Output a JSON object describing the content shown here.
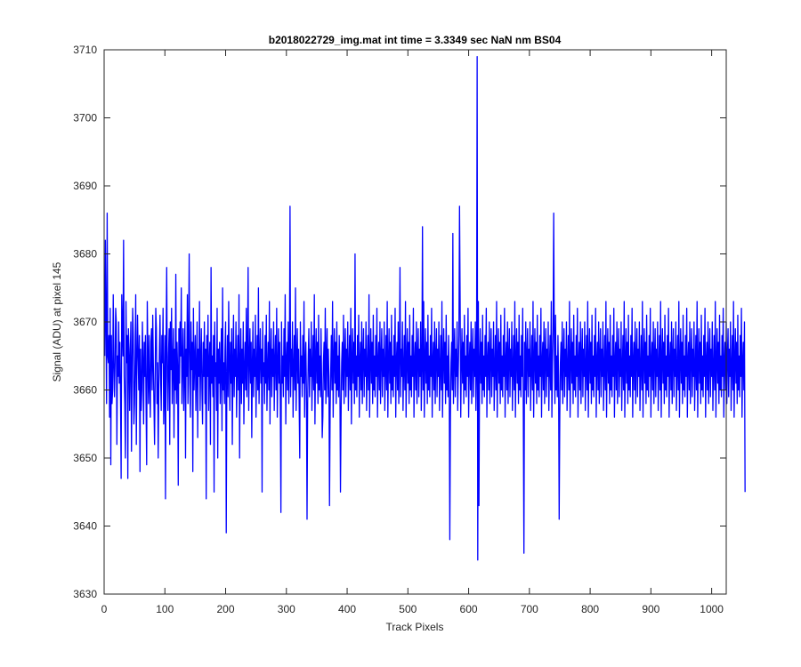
{
  "chart_data": {
    "type": "line",
    "title": "b2018022729_img.mat int time = 3.3349 sec  NaN nm BS04",
    "xlabel": "Track Pixels",
    "ylabel": "Signal (ADU) at pixel 145",
    "xlim": [
      0,
      1024
    ],
    "ylim": [
      3630,
      3710
    ],
    "xticks": [
      0,
      100,
      200,
      300,
      400,
      500,
      600,
      700,
      800,
      900,
      1000
    ],
    "yticks": [
      3630,
      3640,
      3650,
      3660,
      3670,
      3680,
      3690,
      3700,
      3710
    ],
    "grid": false,
    "legend": "none",
    "series_color": "#0000ff",
    "series": [
      {
        "x_start": 1,
        "x_step": 1,
        "y": [
          3665,
          3682,
          3670,
          3658,
          3686,
          3665,
          3664,
          3668,
          3656,
          3672,
          3649,
          3668,
          3658,
          3660,
          3674,
          3664,
          3659,
          3664,
          3672,
          3670,
          3652,
          3665,
          3662,
          3670,
          3661,
          3667,
          3659,
          3647,
          3674,
          3669,
          3665,
          3682,
          3662,
          3658,
          3650,
          3673,
          3664,
          3668,
          3647,
          3669,
          3666,
          3657,
          3665,
          3670,
          3651,
          3663,
          3672,
          3668,
          3655,
          3658,
          3665,
          3674,
          3652,
          3664,
          3671,
          3665,
          3660,
          3668,
          3648,
          3666,
          3657,
          3660,
          3670,
          3664,
          3655,
          3667,
          3662,
          3668,
          3658,
          3649,
          3673,
          3665,
          3658,
          3668,
          3661,
          3656,
          3667,
          3669,
          3660,
          3671,
          3664,
          3658,
          3652,
          3662,
          3672,
          3669,
          3658,
          3664,
          3650,
          3660,
          3666,
          3671,
          3662,
          3657,
          3668,
          3664,
          3672,
          3655,
          3660,
          3668,
          3644,
          3667,
          3678,
          3662,
          3657,
          3665,
          3669,
          3652,
          3670,
          3663,
          3672,
          3658,
          3664,
          3669,
          3653,
          3666,
          3660,
          3677,
          3658,
          3667,
          3663,
          3646,
          3669,
          3661,
          3670,
          3665,
          3675,
          3658,
          3664,
          3669,
          3657,
          3663,
          3670,
          3650,
          3666,
          3662,
          3674,
          3658,
          3667,
          3680,
          3661,
          3656,
          3670,
          3663,
          3667,
          3648,
          3672,
          3660,
          3664,
          3668,
          3657,
          3663,
          3670,
          3653,
          3666,
          3662,
          3673,
          3657,
          3664,
          3669,
          3660,
          3655,
          3667,
          3662,
          3670,
          3658,
          3666,
          3644,
          3668,
          3662,
          3671,
          3657,
          3664,
          3667,
          3652,
          3678,
          3661,
          3665,
          3659,
          3668,
          3645,
          3670,
          3662,
          3664,
          3657,
          3672,
          3650,
          3666,
          3661,
          3667,
          3658,
          3663,
          3669,
          3654,
          3675,
          3660,
          3664,
          3658,
          3666,
          3670,
          3639,
          3662,
          3668,
          3659,
          3673,
          3664,
          3657,
          3667,
          3661,
          3669,
          3652,
          3664,
          3671,
          3659,
          3666,
          3662,
          3670,
          3656,
          3663,
          3668,
          3660,
          3674,
          3650,
          3664,
          3669,
          3658,
          3666,
          3661,
          3670,
          3655,
          3663,
          3667,
          3660,
          3672,
          3659,
          3665,
          3678,
          3657,
          3664,
          3669,
          3661,
          3667,
          3653,
          3664,
          3670,
          3659,
          3666,
          3662,
          3671,
          3656,
          3663,
          3668,
          3660,
          3675,
          3658,
          3664,
          3669,
          3661,
          3666,
          3645,
          3670,
          3662,
          3664,
          3658,
          3668,
          3661,
          3671,
          3657,
          3663,
          3667,
          3660,
          3673,
          3655,
          3665,
          3669,
          3659,
          3666,
          3662,
          3670,
          3657,
          3664,
          3668,
          3660,
          3672,
          3656,
          3663,
          3669,
          3661,
          3667,
          3658,
          3642,
          3670,
          3661,
          3665,
          3659,
          3669,
          3662,
          3674,
          3655,
          3664,
          3667,
          3660,
          3670,
          3658,
          3665,
          3687,
          3659,
          3666,
          3662,
          3670,
          3656,
          3663,
          3668,
          3660,
          3675,
          3657,
          3664,
          3669,
          3661,
          3666,
          3658,
          3650,
          3670,
          3662,
          3665,
          3659,
          3668,
          3661,
          3673,
          3656,
          3664,
          3667,
          3660,
          3641,
          3658,
          3665,
          3669,
          3659,
          3666,
          3662,
          3670,
          3657,
          3663,
          3668,
          3660,
          3674,
          3655,
          3664,
          3669,
          3661,
          3667,
          3658,
          3671,
          3660,
          3665,
          3659,
          3669,
          3662,
          3653,
          3656,
          3664,
          3667,
          3660,
          3672,
          3658,
          3665,
          3669,
          3659,
          3666,
          3662,
          3643,
          3657,
          3663,
          3668,
          3660,
          3673,
          3656,
          3664,
          3669,
          3661,
          3667,
          3658,
          3670,
          3660,
          3665,
          3659,
          3668,
          3662,
          3645,
          3656,
          3664,
          3667,
          3660,
          3671,
          3658,
          3665,
          3669,
          3659,
          3666,
          3662,
          3670,
          3657,
          3663,
          3668,
          3660,
          3672,
          3655,
          3664,
          3669,
          3661,
          3667,
          3658,
          3680,
          3660,
          3665,
          3659,
          3668,
          3662,
          3671,
          3656,
          3664,
          3667,
          3660,
          3670,
          3658,
          3665,
          3669,
          3659,
          3666,
          3662,
          3670,
          3657,
          3663,
          3668,
          3660,
          3674,
          3656,
          3664,
          3669,
          3661,
          3667,
          3658,
          3671,
          3660,
          3665,
          3659,
          3668,
          3662,
          3672,
          3656,
          3664,
          3667,
          3660,
          3670,
          3658,
          3665,
          3669,
          3659,
          3666,
          3662,
          3670,
          3657,
          3663,
          3668,
          3660,
          3673,
          3656,
          3664,
          3669,
          3661,
          3667,
          3658,
          3671,
          3660,
          3665,
          3659,
          3668,
          3662,
          3672,
          3656,
          3664,
          3667,
          3660,
          3670,
          3658,
          3665,
          3678,
          3659,
          3666,
          3662,
          3670,
          3657,
          3663,
          3668,
          3660,
          3673,
          3656,
          3664,
          3669,
          3661,
          3667,
          3658,
          3671,
          3660,
          3665,
          3659,
          3668,
          3662,
          3672,
          3656,
          3664,
          3667,
          3660,
          3670,
          3658,
          3665,
          3669,
          3659,
          3666,
          3662,
          3670,
          3657,
          3663,
          3684,
          3660,
          3673,
          3656,
          3664,
          3669,
          3661,
          3667,
          3658,
          3671,
          3660,
          3665,
          3659,
          3668,
          3662,
          3672,
          3656,
          3664,
          3667,
          3660,
          3670,
          3658,
          3665,
          3669,
          3659,
          3666,
          3662,
          3670,
          3657,
          3663,
          3668,
          3660,
          3673,
          3656,
          3664,
          3669,
          3661,
          3667,
          3658,
          3671,
          3660,
          3665,
          3659,
          3668,
          3662,
          3638,
          3656,
          3664,
          3667,
          3660,
          3683,
          3658,
          3665,
          3669,
          3659,
          3666,
          3662,
          3670,
          3657,
          3663,
          3668,
          3687,
          3673,
          3656,
          3664,
          3669,
          3661,
          3667,
          3658,
          3671,
          3660,
          3665,
          3659,
          3668,
          3662,
          3672,
          3656,
          3664,
          3667,
          3660,
          3670,
          3658,
          3665,
          3669,
          3659,
          3666,
          3662,
          3670,
          3657,
          3663,
          3709,
          3635,
          3673,
          3643,
          3664,
          3669,
          3661,
          3667,
          3658,
          3671,
          3660,
          3665,
          3659,
          3668,
          3662,
          3672,
          3656,
          3664,
          3667,
          3660,
          3670,
          3658,
          3665,
          3669,
          3659,
          3666,
          3662,
          3670,
          3657,
          3663,
          3668,
          3660,
          3673,
          3656,
          3664,
          3669,
          3661,
          3667,
          3658,
          3671,
          3660,
          3665,
          3659,
          3668,
          3662,
          3672,
          3656,
          3664,
          3667,
          3660,
          3670,
          3658,
          3665,
          3669,
          3659,
          3666,
          3662,
          3670,
          3657,
          3663,
          3668,
          3660,
          3673,
          3656,
          3664,
          3669,
          3661,
          3667,
          3658,
          3671,
          3660,
          3665,
          3659,
          3668,
          3662,
          3672,
          3656,
          3636,
          3667,
          3660,
          3670,
          3658,
          3665,
          3669,
          3659,
          3666,
          3662,
          3670,
          3657,
          3663,
          3668,
          3660,
          3673,
          3656,
          3664,
          3669,
          3661,
          3667,
          3658,
          3671,
          3660,
          3665,
          3659,
          3668,
          3662,
          3672,
          3656,
          3664,
          3667,
          3660,
          3670,
          3658,
          3665,
          3669,
          3659,
          3666,
          3662,
          3670,
          3657,
          3663,
          3668,
          3660,
          3673,
          3656,
          3664,
          3669,
          3686,
          3667,
          3658,
          3671,
          3660,
          3665,
          3659,
          3668,
          3662,
          3641,
          3656,
          3664,
          3667,
          3660,
          3670,
          3658,
          3665,
          3669,
          3659,
          3666,
          3662,
          3670,
          3657,
          3663,
          3668,
          3660,
          3673,
          3656,
          3664,
          3669,
          3661,
          3667,
          3658,
          3671,
          3660,
          3665,
          3659,
          3668,
          3662,
          3672,
          3656,
          3664,
          3667,
          3660,
          3670,
          3658,
          3665,
          3669,
          3659,
          3666,
          3662,
          3670,
          3657,
          3663,
          3668,
          3660,
          3673,
          3656,
          3664,
          3669,
          3661,
          3667,
          3658,
          3671,
          3660,
          3665,
          3659,
          3668,
          3662,
          3672,
          3656,
          3664,
          3667,
          3660,
          3670,
          3658,
          3665,
          3669,
          3659,
          3666,
          3662,
          3670,
          3657,
          3663,
          3668,
          3660,
          3673,
          3656,
          3664,
          3669,
          3661,
          3667,
          3658,
          3671,
          3660,
          3665,
          3659,
          3668,
          3662,
          3672,
          3656,
          3664,
          3667,
          3660,
          3670,
          3658,
          3665,
          3669,
          3659,
          3666,
          3662,
          3670,
          3657,
          3663,
          3668,
          3660,
          3673,
          3656,
          3664,
          3669,
          3661,
          3667,
          3658,
          3671,
          3660,
          3665,
          3659,
          3668,
          3662,
          3672,
          3656,
          3664,
          3667,
          3660,
          3670,
          3658,
          3665,
          3669,
          3659,
          3666,
          3662,
          3670,
          3657,
          3663,
          3668,
          3660,
          3673,
          3656,
          3664,
          3669,
          3661,
          3667,
          3658,
          3671,
          3660,
          3665,
          3659,
          3668,
          3662,
          3672,
          3656,
          3664,
          3667,
          3660,
          3670,
          3658,
          3665,
          3669,
          3659,
          3666,
          3662,
          3670,
          3657,
          3663,
          3668,
          3660,
          3673,
          3656,
          3664,
          3669,
          3661,
          3667,
          3658,
          3671,
          3660,
          3665,
          3659,
          3668,
          3662,
          3672,
          3656,
          3664,
          3667,
          3660,
          3670,
          3658,
          3665,
          3669,
          3659,
          3666,
          3662,
          3670,
          3657,
          3663,
          3668,
          3660,
          3673,
          3656,
          3664,
          3669,
          3661,
          3667,
          3658,
          3671,
          3660,
          3665,
          3659,
          3668,
          3662,
          3672,
          3656,
          3664,
          3667,
          3660,
          3670,
          3658,
          3665,
          3669,
          3659,
          3666,
          3662,
          3670,
          3657,
          3663,
          3668,
          3660,
          3673,
          3656,
          3664,
          3669,
          3661,
          3667,
          3658,
          3671,
          3660,
          3665,
          3659,
          3668,
          3662,
          3672,
          3656,
          3664,
          3667,
          3660,
          3670,
          3658,
          3665,
          3669,
          3659,
          3666,
          3662,
          3670,
          3657,
          3663,
          3668,
          3660,
          3673,
          3656,
          3664,
          3669,
          3661,
          3667,
          3658,
          3671,
          3660,
          3665,
          3659,
          3668,
          3662,
          3672,
          3656,
          3664,
          3667,
          3660,
          3670,
          3658,
          3665,
          3669,
          3659,
          3666,
          3662,
          3670,
          3657,
          3663,
          3668,
          3660,
          3673,
          3656,
          3664,
          3669,
          3661,
          3667,
          3658,
          3671,
          3660,
          3665,
          3659,
          3668,
          3662,
          3672,
          3656,
          3664,
          3667,
          3660,
          3670,
          3645
        ]
      }
    ]
  }
}
